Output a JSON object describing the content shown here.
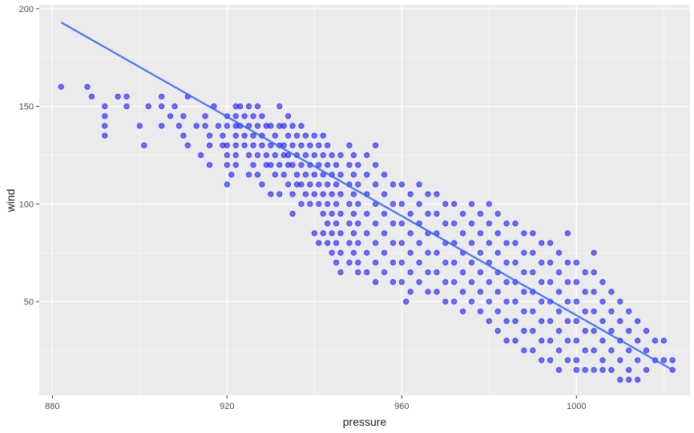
{
  "chart_data": {
    "type": "scatter",
    "title": "",
    "xlabel": "pressure",
    "ylabel": "wind",
    "xlim": [
      877,
      1026
    ],
    "ylim": [
      2,
      202
    ],
    "x_ticks": [
      880,
      920,
      960,
      1000
    ],
    "y_ticks": [
      50,
      100,
      150,
      200
    ],
    "x_tick_labels": [
      "880",
      "920",
      "960",
      "1000"
    ],
    "y_tick_labels": [
      "50",
      "100",
      "150",
      "200"
    ],
    "grid": true,
    "legend": "none",
    "colors": {
      "panel": "#ebebeb",
      "grid": "#ffffff",
      "point": "#0000ff",
      "trend": "#3366ff"
    },
    "point_style": {
      "fill": "#0000ff",
      "opacity": 0.55
    },
    "trend_line": {
      "method": "linear",
      "x": [
        882,
        1022
      ],
      "y": [
        193,
        15
      ]
    },
    "points": [
      [
        882,
        160
      ],
      [
        888,
        160
      ],
      [
        889,
        155
      ],
      [
        892,
        150
      ],
      [
        892,
        145
      ],
      [
        892,
        140
      ],
      [
        892,
        135
      ],
      [
        895,
        155
      ],
      [
        897,
        155
      ],
      [
        897,
        150
      ],
      [
        900,
        140
      ],
      [
        901,
        130
      ],
      [
        902,
        150
      ],
      [
        905,
        155
      ],
      [
        905,
        150
      ],
      [
        905,
        140
      ],
      [
        907,
        145
      ],
      [
        908,
        150
      ],
      [
        909,
        140
      ],
      [
        910,
        145
      ],
      [
        910,
        135
      ],
      [
        911,
        155
      ],
      [
        911,
        130
      ],
      [
        913,
        140
      ],
      [
        914,
        125
      ],
      [
        915,
        145
      ],
      [
        915,
        140
      ],
      [
        916,
        135
      ],
      [
        916,
        130
      ],
      [
        916,
        120
      ],
      [
        917,
        150
      ],
      [
        918,
        140
      ],
      [
        919,
        135
      ],
      [
        919,
        130
      ],
      [
        920,
        145
      ],
      [
        920,
        140
      ],
      [
        920,
        130
      ],
      [
        920,
        125
      ],
      [
        920,
        120
      ],
      [
        920,
        110
      ],
      [
        921,
        115
      ],
      [
        922,
        150
      ],
      [
        922,
        145
      ],
      [
        922,
        140
      ],
      [
        922,
        135
      ],
      [
        922,
        130
      ],
      [
        922,
        125
      ],
      [
        922,
        120
      ],
      [
        923,
        150
      ],
      [
        923,
        140
      ],
      [
        924,
        145
      ],
      [
        924,
        135
      ],
      [
        924,
        130
      ],
      [
        925,
        150
      ],
      [
        925,
        140
      ],
      [
        925,
        125
      ],
      [
        925,
        115
      ],
      [
        926,
        145
      ],
      [
        926,
        135
      ],
      [
        926,
        130
      ],
      [
        926,
        120
      ],
      [
        927,
        150
      ],
      [
        927,
        140
      ],
      [
        927,
        125
      ],
      [
        927,
        115
      ],
      [
        928,
        145
      ],
      [
        928,
        135
      ],
      [
        928,
        130
      ],
      [
        928,
        110
      ],
      [
        929,
        140
      ],
      [
        929,
        125
      ],
      [
        929,
        120
      ],
      [
        930,
        140
      ],
      [
        930,
        130
      ],
      [
        930,
        120
      ],
      [
        930,
        105
      ],
      [
        931,
        135
      ],
      [
        931,
        125
      ],
      [
        931,
        115
      ],
      [
        932,
        150
      ],
      [
        932,
        140
      ],
      [
        932,
        130
      ],
      [
        932,
        120
      ],
      [
        932,
        105
      ],
      [
        933,
        140
      ],
      [
        933,
        130
      ],
      [
        933,
        125
      ],
      [
        933,
        115
      ],
      [
        934,
        145
      ],
      [
        934,
        135
      ],
      [
        934,
        125
      ],
      [
        934,
        120
      ],
      [
        934,
        110
      ],
      [
        935,
        140
      ],
      [
        935,
        130
      ],
      [
        935,
        120
      ],
      [
        935,
        105
      ],
      [
        935,
        95
      ],
      [
        936,
        135
      ],
      [
        936,
        125
      ],
      [
        936,
        115
      ],
      [
        936,
        110
      ],
      [
        937,
        140
      ],
      [
        937,
        130
      ],
      [
        937,
        120
      ],
      [
        937,
        110
      ],
      [
        937,
        100
      ],
      [
        938,
        135
      ],
      [
        938,
        125
      ],
      [
        938,
        115
      ],
      [
        938,
        105
      ],
      [
        939,
        130
      ],
      [
        939,
        120
      ],
      [
        939,
        110
      ],
      [
        939,
        100
      ],
      [
        940,
        135
      ],
      [
        940,
        125
      ],
      [
        940,
        115
      ],
      [
        940,
        105
      ],
      [
        940,
        85
      ],
      [
        941,
        130
      ],
      [
        941,
        120
      ],
      [
        941,
        110
      ],
      [
        941,
        100
      ],
      [
        941,
        80
      ],
      [
        942,
        135
      ],
      [
        942,
        125
      ],
      [
        942,
        115
      ],
      [
        942,
        105
      ],
      [
        942,
        95
      ],
      [
        942,
        85
      ],
      [
        943,
        130
      ],
      [
        943,
        120
      ],
      [
        943,
        110
      ],
      [
        943,
        100
      ],
      [
        943,
        90
      ],
      [
        943,
        80
      ],
      [
        944,
        125
      ],
      [
        944,
        115
      ],
      [
        944,
        105
      ],
      [
        944,
        95
      ],
      [
        944,
        85
      ],
      [
        944,
        75
      ],
      [
        945,
        120
      ],
      [
        945,
        110
      ],
      [
        945,
        100
      ],
      [
        945,
        90
      ],
      [
        945,
        80
      ],
      [
        945,
        70
      ],
      [
        946,
        125
      ],
      [
        946,
        115
      ],
      [
        946,
        105
      ],
      [
        946,
        95
      ],
      [
        946,
        85
      ],
      [
        946,
        75
      ],
      [
        946,
        65
      ],
      [
        948,
        130
      ],
      [
        948,
        120
      ],
      [
        948,
        110
      ],
      [
        948,
        100
      ],
      [
        948,
        90
      ],
      [
        948,
        80
      ],
      [
        948,
        70
      ],
      [
        949,
        125
      ],
      [
        949,
        115
      ],
      [
        949,
        105
      ],
      [
        949,
        95
      ],
      [
        949,
        85
      ],
      [
        949,
        75
      ],
      [
        950,
        120
      ],
      [
        950,
        110
      ],
      [
        950,
        100
      ],
      [
        950,
        90
      ],
      [
        950,
        80
      ],
      [
        950,
        70
      ],
      [
        950,
        65
      ],
      [
        952,
        125
      ],
      [
        952,
        115
      ],
      [
        952,
        105
      ],
      [
        952,
        95
      ],
      [
        952,
        85
      ],
      [
        952,
        75
      ],
      [
        952,
        65
      ],
      [
        954,
        130
      ],
      [
        954,
        120
      ],
      [
        954,
        110
      ],
      [
        954,
        100
      ],
      [
        954,
        90
      ],
      [
        954,
        80
      ],
      [
        954,
        70
      ],
      [
        954,
        60
      ],
      [
        956,
        115
      ],
      [
        956,
        105
      ],
      [
        956,
        95
      ],
      [
        956,
        85
      ],
      [
        956,
        75
      ],
      [
        956,
        65
      ],
      [
        958,
        110
      ],
      [
        958,
        100
      ],
      [
        958,
        90
      ],
      [
        958,
        80
      ],
      [
        958,
        70
      ],
      [
        958,
        60
      ],
      [
        960,
        110
      ],
      [
        960,
        100
      ],
      [
        960,
        90
      ],
      [
        960,
        80
      ],
      [
        960,
        70
      ],
      [
        960,
        60
      ],
      [
        961,
        50
      ],
      [
        962,
        105
      ],
      [
        962,
        95
      ],
      [
        962,
        85
      ],
      [
        962,
        75
      ],
      [
        962,
        65
      ],
      [
        962,
        55
      ],
      [
        964,
        110
      ],
      [
        964,
        100
      ],
      [
        964,
        90
      ],
      [
        964,
        80
      ],
      [
        964,
        70
      ],
      [
        964,
        60
      ],
      [
        966,
        105
      ],
      [
        966,
        95
      ],
      [
        966,
        85
      ],
      [
        966,
        75
      ],
      [
        966,
        65
      ],
      [
        966,
        55
      ],
      [
        968,
        105
      ],
      [
        968,
        95
      ],
      [
        968,
        85
      ],
      [
        968,
        75
      ],
      [
        968,
        65
      ],
      [
        968,
        55
      ],
      [
        970,
        100
      ],
      [
        970,
        90
      ],
      [
        970,
        80
      ],
      [
        970,
        70
      ],
      [
        970,
        60
      ],
      [
        970,
        50
      ],
      [
        972,
        100
      ],
      [
        972,
        90
      ],
      [
        972,
        80
      ],
      [
        972,
        70
      ],
      [
        972,
        60
      ],
      [
        972,
        50
      ],
      [
        974,
        95
      ],
      [
        974,
        85
      ],
      [
        974,
        75
      ],
      [
        974,
        65
      ],
      [
        974,
        55
      ],
      [
        974,
        45
      ],
      [
        976,
        100
      ],
      [
        976,
        90
      ],
      [
        976,
        80
      ],
      [
        976,
        70
      ],
      [
        976,
        60
      ],
      [
        976,
        50
      ],
      [
        978,
        95
      ],
      [
        978,
        85
      ],
      [
        978,
        75
      ],
      [
        978,
        65
      ],
      [
        978,
        55
      ],
      [
        978,
        45
      ],
      [
        980,
        100
      ],
      [
        980,
        90
      ],
      [
        980,
        80
      ],
      [
        980,
        70
      ],
      [
        980,
        60
      ],
      [
        980,
        50
      ],
      [
        980,
        40
      ],
      [
        982,
        95
      ],
      [
        982,
        85
      ],
      [
        982,
        75
      ],
      [
        982,
        65
      ],
      [
        982,
        55
      ],
      [
        982,
        45
      ],
      [
        982,
        35
      ],
      [
        984,
        90
      ],
      [
        984,
        80
      ],
      [
        984,
        70
      ],
      [
        984,
        60
      ],
      [
        984,
        50
      ],
      [
        984,
        40
      ],
      [
        984,
        30
      ],
      [
        986,
        90
      ],
      [
        986,
        80
      ],
      [
        986,
        70
      ],
      [
        986,
        60
      ],
      [
        986,
        50
      ],
      [
        986,
        40
      ],
      [
        986,
        30
      ],
      [
        988,
        85
      ],
      [
        988,
        75
      ],
      [
        988,
        65
      ],
      [
        988,
        55
      ],
      [
        988,
        45
      ],
      [
        988,
        35
      ],
      [
        988,
        25
      ],
      [
        990,
        85
      ],
      [
        990,
        75
      ],
      [
        990,
        65
      ],
      [
        990,
        55
      ],
      [
        990,
        45
      ],
      [
        990,
        35
      ],
      [
        990,
        25
      ],
      [
        992,
        80
      ],
      [
        992,
        70
      ],
      [
        992,
        60
      ],
      [
        992,
        50
      ],
      [
        992,
        40
      ],
      [
        992,
        30
      ],
      [
        992,
        20
      ],
      [
        994,
        80
      ],
      [
        994,
        70
      ],
      [
        994,
        60
      ],
      [
        994,
        50
      ],
      [
        994,
        40
      ],
      [
        994,
        30
      ],
      [
        994,
        20
      ],
      [
        996,
        75
      ],
      [
        996,
        65
      ],
      [
        996,
        55
      ],
      [
        996,
        45
      ],
      [
        996,
        35
      ],
      [
        996,
        25
      ],
      [
        996,
        15
      ],
      [
        998,
        85
      ],
      [
        998,
        70
      ],
      [
        998,
        60
      ],
      [
        998,
        50
      ],
      [
        998,
        40
      ],
      [
        998,
        30
      ],
      [
        998,
        20
      ],
      [
        1000,
        70
      ],
      [
        1000,
        60
      ],
      [
        1000,
        50
      ],
      [
        1000,
        40
      ],
      [
        1000,
        30
      ],
      [
        1000,
        20
      ],
      [
        1000,
        15
      ],
      [
        1002,
        65
      ],
      [
        1002,
        55
      ],
      [
        1002,
        45
      ],
      [
        1002,
        35
      ],
      [
        1002,
        25
      ],
      [
        1002,
        15
      ],
      [
        1004,
        75
      ],
      [
        1004,
        65
      ],
      [
        1004,
        55
      ],
      [
        1004,
        45
      ],
      [
        1004,
        35
      ],
      [
        1004,
        25
      ],
      [
        1004,
        15
      ],
      [
        1006,
        60
      ],
      [
        1006,
        50
      ],
      [
        1006,
        40
      ],
      [
        1006,
        30
      ],
      [
        1006,
        20
      ],
      [
        1006,
        15
      ],
      [
        1008,
        55
      ],
      [
        1008,
        45
      ],
      [
        1008,
        35
      ],
      [
        1008,
        25
      ],
      [
        1008,
        15
      ],
      [
        1010,
        50
      ],
      [
        1010,
        40
      ],
      [
        1010,
        30
      ],
      [
        1010,
        20
      ],
      [
        1010,
        10
      ],
      [
        1012,
        45
      ],
      [
        1012,
        35
      ],
      [
        1012,
        25
      ],
      [
        1012,
        15
      ],
      [
        1012,
        10
      ],
      [
        1014,
        40
      ],
      [
        1014,
        30
      ],
      [
        1014,
        20
      ],
      [
        1014,
        10
      ],
      [
        1016,
        35
      ],
      [
        1016,
        25
      ],
      [
        1016,
        15
      ],
      [
        1018,
        30
      ],
      [
        1018,
        20
      ],
      [
        1020,
        30
      ],
      [
        1020,
        20
      ],
      [
        1022,
        20
      ],
      [
        1022,
        15
      ]
    ]
  }
}
